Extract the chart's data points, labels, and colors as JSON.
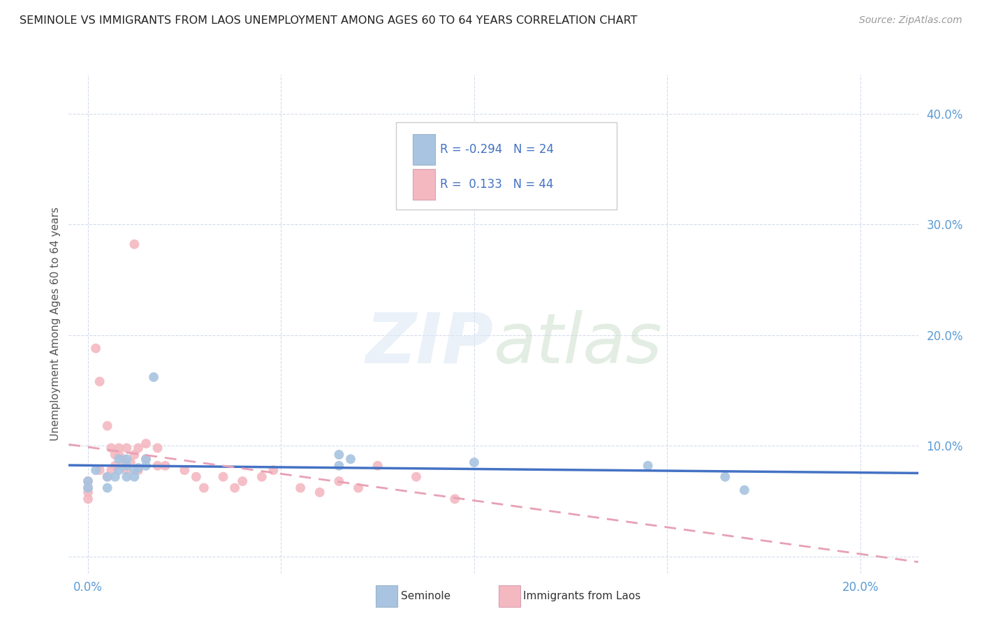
{
  "title": "SEMINOLE VS IMMIGRANTS FROM LAOS UNEMPLOYMENT AMONG AGES 60 TO 64 YEARS CORRELATION CHART",
  "source": "Source: ZipAtlas.com",
  "xlim": [
    -0.005,
    0.215
  ],
  "ylim": [
    -0.015,
    0.435
  ],
  "seminole_R": -0.294,
  "seminole_N": 24,
  "laos_R": 0.133,
  "laos_N": 44,
  "seminole_color": "#a8c4e0",
  "laos_color": "#f4b8c1",
  "seminole_line_color": "#4472c4",
  "laos_line_color": "#e8a0b4",
  "seminole_x": [
    0.0,
    0.0,
    0.002,
    0.005,
    0.005,
    0.007,
    0.008,
    0.008,
    0.01,
    0.01,
    0.01,
    0.012,
    0.012,
    0.013,
    0.015,
    0.015,
    0.017,
    0.065,
    0.065,
    0.068,
    0.1,
    0.145,
    0.165,
    0.17
  ],
  "seminole_y": [
    0.068,
    0.062,
    0.078,
    0.072,
    0.062,
    0.072,
    0.088,
    0.078,
    0.088,
    0.082,
    0.072,
    0.078,
    0.072,
    0.08,
    0.088,
    0.082,
    0.162,
    0.092,
    0.082,
    0.088,
    0.085,
    0.082,
    0.072,
    0.06
  ],
  "laos_x": [
    0.0,
    0.0,
    0.0,
    0.0,
    0.002,
    0.003,
    0.003,
    0.005,
    0.005,
    0.006,
    0.006,
    0.007,
    0.007,
    0.008,
    0.008,
    0.009,
    0.009,
    0.01,
    0.01,
    0.011,
    0.012,
    0.012,
    0.013,
    0.013,
    0.015,
    0.015,
    0.018,
    0.018,
    0.02,
    0.025,
    0.028,
    0.03,
    0.035,
    0.038,
    0.04,
    0.045,
    0.048,
    0.055,
    0.06,
    0.065,
    0.07,
    0.075,
    0.085,
    0.095
  ],
  "laos_y": [
    0.068,
    0.062,
    0.058,
    0.052,
    0.188,
    0.158,
    0.078,
    0.118,
    0.072,
    0.098,
    0.078,
    0.092,
    0.082,
    0.098,
    0.092,
    0.088,
    0.082,
    0.098,
    0.078,
    0.085,
    0.282,
    0.092,
    0.098,
    0.078,
    0.102,
    0.088,
    0.098,
    0.082,
    0.082,
    0.078,
    0.072,
    0.062,
    0.072,
    0.062,
    0.068,
    0.072,
    0.078,
    0.062,
    0.058,
    0.068,
    0.062,
    0.082,
    0.072,
    0.052
  ]
}
